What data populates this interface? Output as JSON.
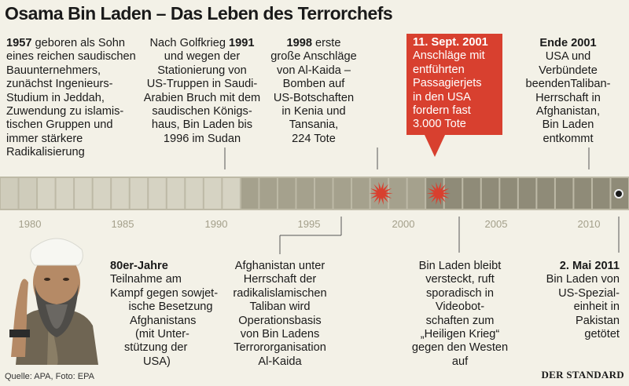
{
  "title": "Osama Bin Laden – Das Leben des Terrorchefs",
  "timeline": {
    "start_year": 1978,
    "end_year": 2012,
    "axis_labels": [
      "1980",
      "1985",
      "1990",
      "1995",
      "2000",
      "2005",
      "2010"
    ],
    "band_color": "#bdb9a6",
    "accent_color": "#d8402f",
    "burst_years": [
      1998.6,
      2001.7
    ],
    "end_marker_year": 2011.3
  },
  "top_events": [
    {
      "year": "1957",
      "text": "geboren als Sohn eines reichen saudischen Bauunternehmers, zunächst Ingenieurs-Studium in Jeddah, Zuwendung zu islamis-tischen Gruppen und immer stärkere Radikalisierung",
      "lines": [
        "1957 geboren als Sohn",
        "eines reichen saudischen",
        "Bauunternehmers,",
        "zunächst Ingenieurs-",
        "Studium in Jeddah,",
        "Zuwendung zu islamis-",
        "tischen Gruppen und",
        "immer stärkere",
        "Radikalisierung"
      ]
    },
    {
      "year": "1991",
      "lines": [
        "Nach Golfkrieg 1991",
        "und wegen der",
        "Stationierung von",
        "US-Truppen in Saudi-",
        "Arabien Bruch mit dem",
        "saudischen Königs-",
        "haus, Bin Laden bis",
        "1996 im Sudan"
      ]
    },
    {
      "year": "1998",
      "lines": [
        "1998 erste",
        "große Anschläge",
        "von Al-Kaida –",
        "Bomben auf",
        "US-Botschaften",
        "in Kenia und",
        "Tansania,",
        "224 Tote"
      ]
    },
    {
      "year": "11. Sept. 2001",
      "lines": [
        "11. Sept. 2001",
        "Anschläge mit",
        "entführten",
        "Passagierjets",
        "in den USA",
        "fordern fast",
        "3.000 Tote"
      ]
    },
    {
      "year": "Ende 2001",
      "lines": [
        "Ende 2001",
        "USA und",
        "Verbündete",
        "beendenTaliban-",
        "Herrschaft in",
        "Afghanistan,",
        "Bin Laden",
        "entkommt"
      ]
    }
  ],
  "bottom_events": [
    {
      "year": "80er-Jahre",
      "lines": [
        "80er-Jahre",
        "Teilnahme am",
        "Kampf gegen sowjet-",
        "ische Besetzung",
        "Afghanistans",
        "(mit Unter-",
        "stützung der",
        "USA)"
      ]
    },
    {
      "year": "1996",
      "lines": [
        "Afghanistan unter",
        "Herrschaft der",
        "radikalislamischen",
        "Taliban wird",
        "Operationsbasis",
        "von Bin Ladens",
        "Terrororganisation",
        "Al-Kaida"
      ]
    },
    {
      "year": "2003",
      "lines": [
        "Bin Laden bleibt",
        "versteckt, ruft",
        "sporadisch in",
        "Videobot-",
        "schaften zum",
        "„Heiligen Krieg“",
        "gegen den Westen",
        "auf"
      ]
    },
    {
      "year": "2. Mai 2011",
      "lines": [
        "2. Mai 2011",
        "Bin Laden von",
        "US-Spezial-",
        "einheit in",
        "Pakistan",
        "getötet"
      ]
    }
  ],
  "footer": {
    "source": "Quelle: APA, Foto: EPA",
    "logo": "DER STANDARD"
  }
}
